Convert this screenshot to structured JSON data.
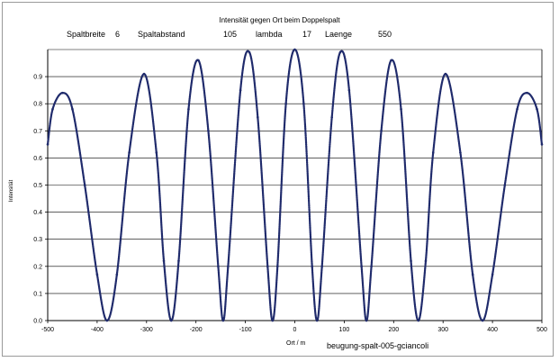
{
  "chart_data": {
    "type": "line",
    "title": "Intensität gegen Ort beim Doppelspalt",
    "xlabel": "Ort / m",
    "ylabel": "Intensität",
    "xlim": [
      -500,
      500
    ],
    "ylim": [
      0,
      1
    ],
    "xticks": [
      "-500",
      "-400",
      "-300",
      "-200",
      "-100",
      "0",
      "100",
      "200",
      "300",
      "400",
      "500"
    ],
    "yticks": [
      "0.0",
      "0.1",
      "0.2",
      "0.3",
      "0.4",
      "0.5",
      "0.6",
      "0.7",
      "0.8",
      "0.9"
    ],
    "grid": "horizontal",
    "line_color": "#1f2a6b",
    "params": {
      "spaltbreite_label": "Spaltbreite",
      "spaltbreite_value": "6",
      "spaltabstand_label": "Spaltabstand",
      "spaltabstand_value": "105",
      "lambda_label": "lambda",
      "lambda_value": "17",
      "laenge_label": "Laenge",
      "laenge_value": "550"
    },
    "credit": "beugung-spalt-005-gciancoli",
    "series": [
      {
        "points": [
          [
            -500,
            0.65
          ],
          [
            -490,
            0.78
          ],
          [
            -470,
            0.84
          ],
          [
            -450,
            0.78
          ],
          [
            -425,
            0.5
          ],
          [
            -400,
            0.17
          ],
          [
            -380,
            0.0
          ],
          [
            -360,
            0.17
          ],
          [
            -335,
            0.62
          ],
          [
            -305,
            0.91
          ],
          [
            -280,
            0.62
          ],
          [
            -265,
            0.22
          ],
          [
            -250,
            0.0
          ],
          [
            -235,
            0.22
          ],
          [
            -215,
            0.78
          ],
          [
            -195,
            0.96
          ],
          [
            -175,
            0.7
          ],
          [
            -155,
            0.2
          ],
          [
            -145,
            0.0
          ],
          [
            -135,
            0.2
          ],
          [
            -110,
            0.85
          ],
          [
            -92,
            0.99
          ],
          [
            -75,
            0.75
          ],
          [
            -55,
            0.2
          ],
          [
            -45,
            0.0
          ],
          [
            -35,
            0.2
          ],
          [
            -18,
            0.8
          ],
          [
            0,
            1.0
          ],
          [
            18,
            0.8
          ],
          [
            35,
            0.2
          ],
          [
            45,
            0.0
          ],
          [
            55,
            0.2
          ],
          [
            75,
            0.75
          ],
          [
            92,
            0.99
          ],
          [
            110,
            0.85
          ],
          [
            135,
            0.2
          ],
          [
            145,
            0.0
          ],
          [
            155,
            0.2
          ],
          [
            175,
            0.7
          ],
          [
            195,
            0.96
          ],
          [
            215,
            0.78
          ],
          [
            235,
            0.22
          ],
          [
            250,
            0.0
          ],
          [
            265,
            0.22
          ],
          [
            280,
            0.62
          ],
          [
            305,
            0.91
          ],
          [
            335,
            0.62
          ],
          [
            360,
            0.17
          ],
          [
            380,
            0.0
          ],
          [
            400,
            0.17
          ],
          [
            425,
            0.5
          ],
          [
            450,
            0.78
          ],
          [
            470,
            0.84
          ],
          [
            490,
            0.78
          ],
          [
            500,
            0.65
          ]
        ]
      }
    ]
  }
}
